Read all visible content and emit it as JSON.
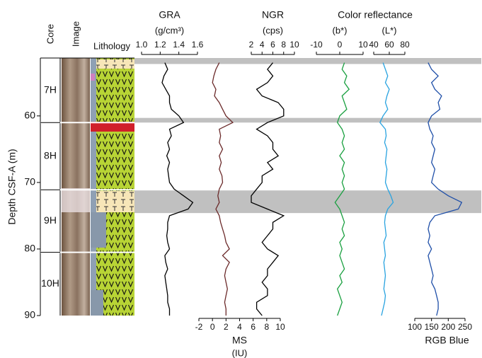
{
  "chart_data": {
    "type": "log",
    "ylabel": "Depth CSF-A (m)",
    "ylim": [
      51.3,
      90
    ],
    "yticks": [
      60,
      70,
      80,
      90
    ],
    "column_titles": [
      "Core",
      "Image",
      "Lithology"
    ],
    "group_title": "Color reflectance",
    "cores": [
      {
        "name": "7H",
        "top": 51.3,
        "bottom": 61.0
      },
      {
        "name": "8H",
        "top": 61.0,
        "bottom": 71.1
      },
      {
        "name": "9H",
        "top": 71.1,
        "bottom": 80.5
      },
      {
        "name": "10H",
        "top": 80.5,
        "bottom": 90
      }
    ],
    "shaded_intervals": [
      [
        51.3,
        52.2
      ],
      [
        60.3,
        61.0
      ],
      [
        71.2,
        74.6
      ]
    ],
    "depth": [
      52,
      53,
      54,
      55,
      56,
      57,
      58,
      59,
      60,
      61,
      62,
      63,
      64,
      65,
      66,
      67,
      68,
      69,
      70,
      71,
      72,
      73,
      74,
      75,
      76,
      77,
      78,
      79,
      80,
      81,
      82,
      83,
      84,
      85,
      86,
      87,
      88,
      89,
      90
    ],
    "tracks": [
      {
        "name": "GRA",
        "unit": "(g/cm³)",
        "axis": "top",
        "color": "#000000",
        "xlim": [
          1.0,
          1.6
        ],
        "xticks": [
          {
            "value": 1.0,
            "label": "1.0"
          },
          1.2,
          1.4,
          1.6
        ],
        "values": [
          1.25,
          1.28,
          1.24,
          1.22,
          1.26,
          1.3,
          1.3,
          1.32,
          1.4,
          1.45,
          1.3,
          1.32,
          1.28,
          1.3,
          1.27,
          1.3,
          1.28,
          1.29,
          1.3,
          1.35,
          1.45,
          1.55,
          1.5,
          1.3,
          1.28,
          1.28,
          1.27,
          1.28,
          1.3,
          1.25,
          1.26,
          1.28,
          1.25,
          1.26,
          1.27,
          1.28,
          1.28,
          1.3,
          1.3
        ]
      },
      {
        "name": "MS",
        "unit": "(IU)",
        "axis": "bottom",
        "color": "#6b2a2a",
        "xlim": [
          -2,
          10
        ],
        "xticks": [
          -2,
          0,
          2,
          4,
          6,
          8,
          10
        ],
        "values": [
          1,
          0.5,
          0.2,
          0,
          0.5,
          0.3,
          1,
          1.5,
          2,
          3,
          1,
          1.2,
          1,
          1.5,
          1,
          1.3,
          1,
          1.4,
          1.5,
          1,
          0.8,
          1,
          0.5,
          1,
          1.2,
          1.5,
          1.8,
          2,
          2.5,
          1.5,
          2.5,
          2,
          1.8,
          2,
          2.2,
          2,
          1.8,
          2,
          2
        ]
      },
      {
        "name": "NGR",
        "unit": "(cps)",
        "axis": "top",
        "color": "#000000",
        "xlim": [
          2,
          10
        ],
        "xticks": [
          2,
          4,
          6,
          8,
          10
        ],
        "values": [
          6,
          5,
          6,
          5,
          3,
          4,
          7,
          8,
          8,
          5,
          3,
          5,
          6,
          6,
          7,
          5,
          6,
          4,
          4,
          3,
          2,
          2,
          5,
          8,
          6,
          6,
          5,
          4,
          5,
          7,
          6,
          5,
          5,
          4,
          5,
          5,
          3,
          3,
          4
        ]
      },
      {
        "unit": "(b*)",
        "axis": "top",
        "color": "#1aa040",
        "xlim": [
          -10,
          10
        ],
        "xticks": [
          -10,
          0,
          10
        ],
        "values": [
          2,
          1,
          3,
          2,
          4,
          1,
          2,
          3,
          0,
          -1,
          1,
          2,
          1,
          2,
          0,
          2,
          1,
          2,
          1,
          2,
          0,
          -2,
          0,
          1,
          2,
          1,
          2,
          0,
          1,
          0,
          1,
          2,
          0,
          1,
          -1,
          0,
          1,
          0,
          -1
        ]
      },
      {
        "unit": "(L*)",
        "axis": "top",
        "color": "#29a3e0",
        "xlim": [
          40,
          80
        ],
        "xticks": [
          40,
          60,
          80
        ],
        "values": [
          52,
          55,
          58,
          55,
          60,
          57,
          55,
          58,
          52,
          48,
          55,
          56,
          54,
          57,
          56,
          55,
          57,
          56,
          55,
          58,
          62,
          65,
          58,
          55,
          54,
          55,
          56,
          53,
          54,
          55,
          53,
          54,
          55,
          54,
          53,
          55,
          54,
          52,
          50
        ]
      },
      {
        "name": "RGB Blue",
        "axis": "bottom",
        "color": "#1f4fa8",
        "xlim": [
          100,
          250
        ],
        "xticks": [
          100,
          150,
          200,
          250
        ],
        "values": [
          140,
          150,
          170,
          150,
          160,
          180,
          170,
          175,
          150,
          140,
          145,
          155,
          150,
          160,
          155,
          150,
          160,
          155,
          150,
          170,
          200,
          240,
          230,
          160,
          145,
          140,
          145,
          140,
          150,
          140,
          145,
          150,
          155,
          150,
          160,
          165,
          170,
          170,
          165
        ]
      }
    ]
  }
}
